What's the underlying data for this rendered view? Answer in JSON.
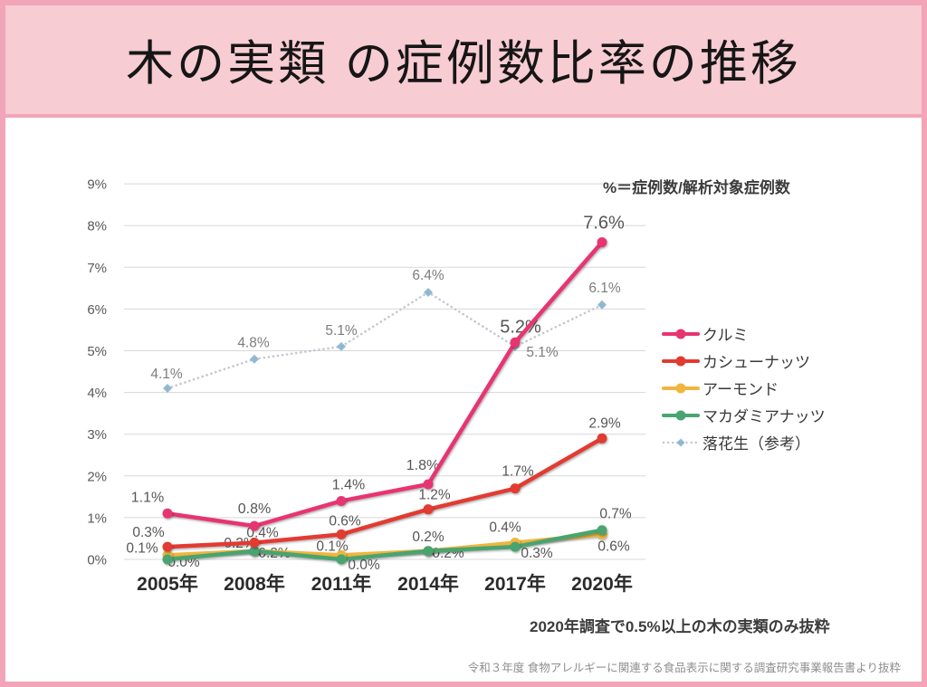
{
  "slide": {
    "title": "木の実類 の症例数比率の推移",
    "note_filter": "2020年調査で0.5%以上の木の実類のみ抜粋",
    "source": "令和３年度 食物アレルギーに関連する食品表示に関する調査研究事業報告書より抜粋"
  },
  "colors": {
    "slide_border": "#f2a4b9",
    "header_bg": "#f8ccd3",
    "grid": "#d8d8d8",
    "data_label": "#565656",
    "peanut_label": "#7d7d7d"
  },
  "chart_data": {
    "type": "line",
    "annotation": "%＝症例数/解析対象症例数",
    "categories": [
      "2005年",
      "2008年",
      "2011年",
      "2014年",
      "2017年",
      "2020年"
    ],
    "y_ticks": [
      "0%",
      "1%",
      "2%",
      "3%",
      "4%",
      "5%",
      "6%",
      "7%",
      "8%",
      "9%"
    ],
    "ylim": [
      0,
      9
    ],
    "grid": true,
    "legend_position": "right",
    "series": [
      {
        "name": "クルミ",
        "color": "#e7356f",
        "style": "solid",
        "values": [
          1.1,
          0.8,
          1.4,
          1.8,
          5.2,
          7.6
        ],
        "labels": [
          "1.1%",
          "0.8%",
          "1.4%",
          "1.8%",
          "5.2%",
          "7.6%"
        ]
      },
      {
        "name": "カシューナッツ",
        "color": "#e23a31",
        "style": "solid",
        "values": [
          0.3,
          0.4,
          0.6,
          1.2,
          1.7,
          2.9
        ],
        "labels": [
          "0.3%",
          "0.4%",
          "0.6%",
          "1.2%",
          "1.7%",
          "2.9%"
        ]
      },
      {
        "name": "アーモンド",
        "color": "#f1b53e",
        "style": "solid",
        "values": [
          0.1,
          0.2,
          0.1,
          0.2,
          0.4,
          0.6
        ],
        "labels": [
          "0.1%",
          "0.2%",
          "0.1%",
          "0.2%",
          "0.4%",
          "0.6%"
        ]
      },
      {
        "name": "マカダミアナッツ",
        "color": "#4aa46f",
        "style": "solid",
        "values": [
          0.0,
          0.2,
          0.0,
          0.2,
          0.3,
          0.7
        ],
        "labels": [
          "0.0%",
          "0.2%",
          "0.0%",
          "0.2%",
          "0.3%",
          "0.7%"
        ]
      },
      {
        "name": "落花生（参考）",
        "color": "#c2c9d0",
        "marker_color": "#87b1cd",
        "style": "dotted",
        "values": [
          4.1,
          4.8,
          5.1,
          6.4,
          5.1,
          6.1
        ],
        "labels": [
          "4.1%",
          "4.8%",
          "5.1%",
          "6.4%",
          "5.1%",
          "6.1%"
        ]
      }
    ]
  }
}
